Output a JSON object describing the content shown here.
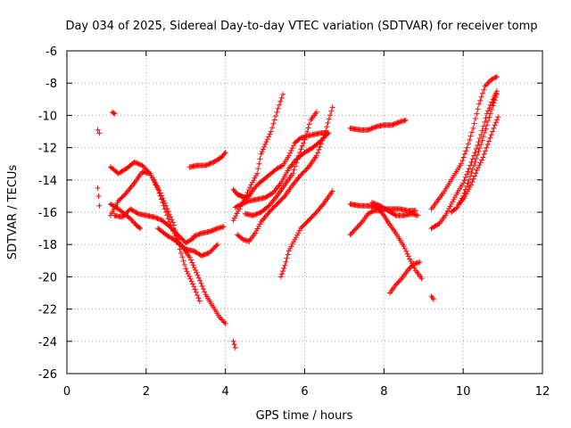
{
  "chart_data": {
    "type": "scatter",
    "title": "Day 034 of 2025, Sidereal Day-to-day VTEC variation (SDTVAR) for receiver tomp",
    "xlabel": "GPS time / hours",
    "ylabel": "SDTVAR / TECUs",
    "xlim": [
      0,
      12
    ],
    "ylim": [
      -26,
      -6
    ],
    "xticks": [
      0,
      2,
      4,
      6,
      8,
      10,
      12
    ],
    "yticks": [
      -6,
      -8,
      -10,
      -12,
      -14,
      -16,
      -18,
      -20,
      -22,
      -24,
      -26
    ],
    "grid": true,
    "marker": "+",
    "color": "#ff0000",
    "series": [
      {
        "segments": [
          [
            [
              0.78,
              -10.9
            ],
            [
              0.82,
              -11.1
            ]
          ],
          [
            [
              0.78,
              -14.5
            ],
            [
              0.8,
              -15.0
            ],
            [
              0.82,
              -15.6
            ]
          ],
          [
            [
              1.15,
              -9.8
            ],
            [
              1.2,
              -9.9
            ]
          ],
          [
            [
              1.1,
              -13.2
            ],
            [
              1.3,
              -13.6
            ],
            [
              1.5,
              -13.3
            ],
            [
              1.7,
              -12.9
            ],
            [
              1.9,
              -13.1
            ],
            [
              2.1,
              -13.6
            ],
            [
              2.3,
              -14.5
            ],
            [
              2.5,
              -15.6
            ],
            [
              2.7,
              -16.8
            ],
            [
              2.85,
              -18.3
            ],
            [
              3.0,
              -19.5
            ],
            [
              3.2,
              -20.6
            ],
            [
              3.35,
              -21.5
            ]
          ],
          [
            [
              1.1,
              -16.2
            ],
            [
              1.3,
              -15.3
            ],
            [
              1.5,
              -14.8
            ],
            [
              1.7,
              -14.2
            ],
            [
              1.9,
              -13.5
            ],
            [
              2.1,
              -13.6
            ],
            [
              2.3,
              -14.6
            ],
            [
              2.5,
              -16.0
            ],
            [
              2.65,
              -17.0
            ],
            [
              2.8,
              -17.8
            ],
            [
              3.0,
              -18.3
            ],
            [
              3.2,
              -18.4
            ],
            [
              3.4,
              -18.7
            ],
            [
              3.6,
              -18.5
            ],
            [
              3.8,
              -18.0
            ]
          ],
          [
            [
              1.1,
              -15.5
            ],
            [
              1.3,
              -15.8
            ],
            [
              1.45,
              -16.1
            ],
            [
              1.6,
              -16.4
            ],
            [
              1.75,
              -16.8
            ],
            [
              1.85,
              -17.0
            ]
          ],
          [
            [
              1.2,
              -16.2
            ],
            [
              1.4,
              -16.3
            ],
            [
              1.6,
              -15.8
            ],
            [
              1.8,
              -16.1
            ],
            [
              2.0,
              -16.2
            ],
            [
              2.2,
              -16.3
            ],
            [
              2.4,
              -16.5
            ],
            [
              2.6,
              -16.9
            ],
            [
              2.8,
              -17.4
            ],
            [
              3.0,
              -17.9
            ],
            [
              3.2,
              -17.6
            ]
          ],
          [
            [
              2.3,
              -17.0
            ],
            [
              2.5,
              -17.4
            ],
            [
              2.7,
              -17.7
            ],
            [
              2.9,
              -18.1
            ],
            [
              3.1,
              -18.8
            ],
            [
              3.3,
              -19.9
            ],
            [
              3.5,
              -21.1
            ],
            [
              3.7,
              -21.9
            ],
            [
              3.85,
              -22.5
            ],
            [
              4.0,
              -22.9
            ]
          ],
          [
            [
              3.2,
              -17.5
            ],
            [
              3.4,
              -17.3
            ],
            [
              3.6,
              -17.2
            ],
            [
              3.8,
              -17.0
            ],
            [
              3.95,
              -16.9
            ]
          ],
          [
            [
              3.1,
              -13.2
            ],
            [
              3.3,
              -13.1
            ],
            [
              3.5,
              -13.1
            ],
            [
              3.7,
              -12.9
            ],
            [
              3.9,
              -12.6
            ],
            [
              4.0,
              -12.3
            ]
          ],
          [
            [
              4.2,
              -24.0
            ],
            [
              4.25,
              -24.4
            ]
          ],
          [
            [
              4.2,
              -14.6
            ],
            [
              4.3,
              -14.9
            ],
            [
              4.4,
              -15.0
            ],
            [
              4.5,
              -15.1
            ],
            [
              4.6,
              -15.0
            ],
            [
              4.7,
              -14.6
            ],
            [
              4.85,
              -14.2
            ],
            [
              5.0,
              -13.9
            ],
            [
              5.15,
              -13.6
            ],
            [
              5.3,
              -13.3
            ],
            [
              5.45,
              -13.1
            ],
            [
              5.6,
              -12.5
            ],
            [
              5.75,
              -11.7
            ],
            [
              5.9,
              -11.4
            ],
            [
              6.05,
              -11.3
            ],
            [
              6.2,
              -11.2
            ],
            [
              6.4,
              -11.1
            ],
            [
              6.6,
              -11.1
            ]
          ],
          [
            [
              4.2,
              -16.5
            ],
            [
              4.35,
              -15.8
            ],
            [
              4.5,
              -15.1
            ],
            [
              4.65,
              -14.3
            ],
            [
              4.8,
              -13.6
            ],
            [
              4.9,
              -12.4
            ],
            [
              5.0,
              -11.8
            ],
            [
              5.15,
              -11.0
            ],
            [
              5.3,
              -9.8
            ],
            [
              5.45,
              -8.7
            ]
          ],
          [
            [
              4.25,
              -15.7
            ],
            [
              4.4,
              -15.5
            ],
            [
              4.6,
              -15.3
            ],
            [
              4.8,
              -15.2
            ],
            [
              5.0,
              -15.1
            ],
            [
              5.2,
              -14.8
            ],
            [
              5.4,
              -14.2
            ],
            [
              5.6,
              -13.3
            ],
            [
              5.8,
              -12.7
            ],
            [
              6.0,
              -12.3
            ],
            [
              6.2,
              -12.0
            ],
            [
              6.4,
              -11.6
            ],
            [
              6.6,
              -11.1
            ]
          ],
          [
            [
              4.3,
              -17.4
            ],
            [
              4.45,
              -17.7
            ],
            [
              4.6,
              -17.8
            ],
            [
              4.75,
              -17.3
            ],
            [
              4.9,
              -16.6
            ],
            [
              5.1,
              -16.0
            ],
            [
              5.3,
              -15.5
            ],
            [
              5.5,
              -15.0
            ],
            [
              5.7,
              -14.3
            ],
            [
              5.9,
              -13.7
            ],
            [
              6.1,
              -13.2
            ],
            [
              6.3,
              -12.5
            ],
            [
              6.5,
              -11.2
            ],
            [
              6.7,
              -9.5
            ]
          ],
          [
            [
              4.5,
              -16.1
            ],
            [
              4.7,
              -16.2
            ],
            [
              4.9,
              -16.0
            ],
            [
              5.1,
              -15.6
            ],
            [
              5.3,
              -15.0
            ],
            [
              5.5,
              -14.3
            ],
            [
              5.7,
              -13.6
            ],
            [
              5.85,
              -12.5
            ],
            [
              6.0,
              -11.5
            ],
            [
              6.15,
              -10.3
            ],
            [
              6.3,
              -9.8
            ]
          ],
          [
            [
              5.4,
              -20.0
            ],
            [
              5.5,
              -19.3
            ],
            [
              5.6,
              -18.4
            ],
            [
              5.75,
              -17.7
            ],
            [
              5.9,
              -17.0
            ],
            [
              6.1,
              -16.5
            ],
            [
              6.3,
              -16.0
            ],
            [
              6.5,
              -15.4
            ],
            [
              6.7,
              -14.7
            ]
          ],
          [
            [
              7.15,
              -10.8
            ],
            [
              7.4,
              -10.9
            ],
            [
              7.6,
              -10.9
            ],
            [
              7.8,
              -10.7
            ],
            [
              8.0,
              -10.6
            ],
            [
              8.2,
              -10.6
            ],
            [
              8.4,
              -10.4
            ],
            [
              8.55,
              -10.3
            ]
          ],
          [
            [
              7.15,
              -15.5
            ],
            [
              7.4,
              -15.6
            ],
            [
              7.6,
              -15.6
            ],
            [
              7.8,
              -15.7
            ],
            [
              8.0,
              -15.8
            ],
            [
              8.2,
              -15.8
            ],
            [
              8.4,
              -15.8
            ],
            [
              8.6,
              -15.9
            ],
            [
              8.8,
              -15.9
            ]
          ],
          [
            [
              7.15,
              -17.4
            ],
            [
              7.3,
              -17.0
            ],
            [
              7.45,
              -16.6
            ],
            [
              7.6,
              -16.1
            ],
            [
              7.75,
              -15.9
            ],
            [
              7.9,
              -15.9
            ],
            [
              8.0,
              -16.2
            ],
            [
              8.1,
              -16.6
            ],
            [
              8.3,
              -17.3
            ],
            [
              8.5,
              -18.1
            ],
            [
              8.65,
              -18.9
            ],
            [
              8.8,
              -19.6
            ],
            [
              8.95,
              -20.1
            ]
          ],
          [
            [
              7.7,
              -15.4
            ],
            [
              7.9,
              -15.6
            ],
            [
              8.1,
              -15.9
            ],
            [
              8.3,
              -16.2
            ],
            [
              8.5,
              -16.2
            ],
            [
              8.7,
              -16.1
            ],
            [
              8.85,
              -16.2
            ]
          ],
          [
            [
              8.15,
              -21.0
            ],
            [
              8.3,
              -20.5
            ],
            [
              8.45,
              -20.1
            ],
            [
              8.6,
              -19.6
            ],
            [
              8.75,
              -19.2
            ],
            [
              8.9,
              -19.1
            ]
          ],
          [
            [
              9.2,
              -21.2
            ],
            [
              9.25,
              -21.4
            ]
          ],
          [
            [
              9.2,
              -17.0
            ],
            [
              9.4,
              -16.7
            ],
            [
              9.55,
              -16.2
            ],
            [
              9.7,
              -15.5
            ],
            [
              9.85,
              -14.8
            ],
            [
              10.0,
              -14.2
            ],
            [
              10.15,
              -13.3
            ],
            [
              10.3,
              -12.3
            ],
            [
              10.45,
              -11.2
            ],
            [
              10.6,
              -9.9
            ],
            [
              10.75,
              -9.0
            ],
            [
              10.85,
              -8.5
            ]
          ],
          [
            [
              9.2,
              -15.8
            ],
            [
              9.35,
              -15.3
            ],
            [
              9.5,
              -14.8
            ],
            [
              9.65,
              -14.2
            ],
            [
              9.8,
              -13.6
            ],
            [
              9.95,
              -13.0
            ],
            [
              10.1,
              -12.0
            ],
            [
              10.25,
              -10.8
            ],
            [
              10.4,
              -9.3
            ],
            [
              10.55,
              -8.2
            ],
            [
              10.7,
              -7.8
            ],
            [
              10.85,
              -7.6
            ]
          ],
          [
            [
              9.7,
              -16.0
            ],
            [
              9.85,
              -15.7
            ],
            [
              10.0,
              -15.0
            ],
            [
              10.15,
              -14.0
            ],
            [
              10.3,
              -12.9
            ],
            [
              10.45,
              -11.8
            ],
            [
              10.6,
              -10.6
            ],
            [
              10.75,
              -9.4
            ],
            [
              10.85,
              -8.7
            ]
          ],
          [
            [
              9.9,
              -15.5
            ],
            [
              10.05,
              -15.0
            ],
            [
              10.2,
              -14.3
            ],
            [
              10.35,
              -13.4
            ],
            [
              10.5,
              -12.6
            ],
            [
              10.65,
              -11.6
            ],
            [
              10.8,
              -10.6
            ],
            [
              10.88,
              -10.1
            ]
          ]
        ]
      }
    ]
  }
}
